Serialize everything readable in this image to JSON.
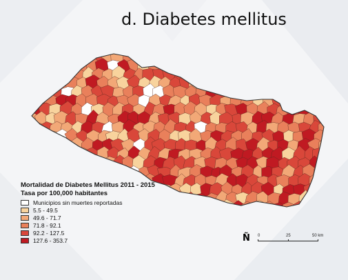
{
  "title": "d. Diabetes mellitus",
  "legend": {
    "title": "Mortalidad de Diabetes Mellitus 2011 - 2015",
    "subtitle": "Tasa por 100,000 habitantes",
    "items": [
      {
        "label": "Municipios sin muertes reportadas",
        "color": "#ffffff"
      },
      {
        "label": "5.5 - 49.5",
        "color": "#f8d39d"
      },
      {
        "label": "49.6 - 71.7",
        "color": "#f2a877"
      },
      {
        "label": "71.8 - 92.1",
        "color": "#e9805b"
      },
      {
        "label": "92.2 - 127.5",
        "color": "#d9473a"
      },
      {
        "label": "127.6 - 353.7",
        "color": "#c01a22"
      }
    ]
  },
  "north_arrow": "Ñ",
  "scale_bar": {
    "ticks": [
      "0",
      "25",
      "50 km"
    ]
  }
}
